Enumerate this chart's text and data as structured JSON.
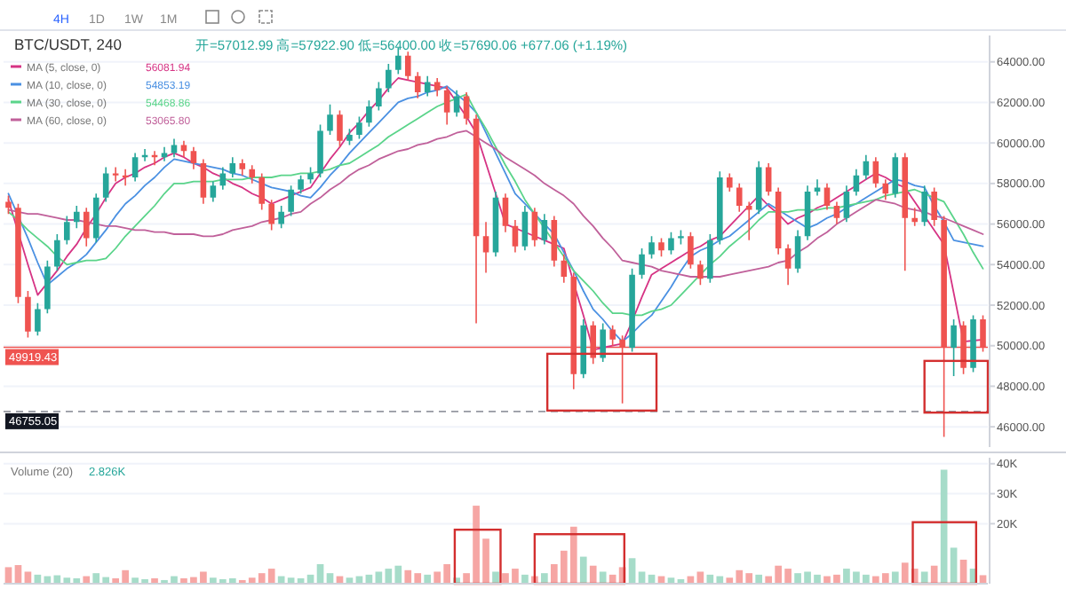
{
  "chart_data": [
    {
      "type": "candlestick",
      "title": "BTC/USDT, 240",
      "annotations": [
        "开=57012.99 高=57922.90 低=56400.00 收=57690.06 +677.06 (+1.19%)",
        "56081.94",
        "54853.19",
        "54468.86",
        "53065.80",
        "4H",
        "1D",
        "1W",
        "1M"
      ],
      "colors": [
        "#ef5350",
        "#ef5350",
        "#ef5350",
        "#26a69a",
        "#26a69a",
        "#26a69a",
        "#26a69a",
        "#26a69a",
        "#ef5350",
        "#26a69a",
        "#26a69a",
        "#ef5350",
        "#ef5350",
        "#26a69a",
        "#26a69a",
        "#ef5350",
        "#26a69a",
        "#26a69a",
        "#ef5350",
        "#ef5350",
        "#ef5350",
        "#26a69a",
        "#26a69a",
        "#26a69a",
        "#ef5350",
        "#ef5350",
        "#ef5350",
        "#ef5350",
        "#26a69a",
        "#26a69a",
        "#26a69a",
        "#26a69a",
        "#26a69a",
        "#26a69a",
        "#ef5350",
        "#26a69a",
        "#26a69a",
        "#26a69a",
        "#26a69a",
        "#26a69a",
        "#26a69a",
        "#ef5350",
        "#ef5350",
        "#26a69a",
        "#ef5350",
        "#ef5350",
        "#26a69a",
        "#ef5350",
        "#ef5350",
        "#ef5350",
        "#26a69a",
        "#ef5350",
        "#ef5350",
        "#26a69a",
        "#ef5350",
        "#26a69a",
        "#ef5350",
        "#ef5350",
        "#ef5350",
        "#26a69a",
        "#ef5350",
        "#26a69a",
        "#ef5350",
        "#ef5350",
        "#26a69a",
        "#26a69a",
        "#26a69a",
        "#ef5350",
        "#26a69a",
        "#26a69a",
        "#ef5350",
        "#ef5350",
        "#26a69a",
        "#26a69a",
        "#ef5350",
        "#ef5350",
        "#ef5350",
        "#26a69a",
        "#ef5350",
        "#ef5350",
        "#ef5350",
        "#26a69a",
        "#26a69a",
        "#26a69a",
        "#ef5350",
        "#ef5350",
        "#26a69a",
        "#26a69a",
        "#26a69a",
        "#ef5350",
        "#ef5350",
        "#26a69a",
        "#ef5350",
        "#ef5350",
        "#26a69a",
        "#ef5350",
        "#ef5350",
        "#26a69a",
        "#ef5350",
        "#26a69a",
        "#ef5350"
      ],
      "categories": [
        null,
        null,
        null,
        null,
        null,
        null,
        null,
        null,
        null,
        null,
        null,
        null,
        null,
        null,
        null,
        null,
        null,
        null,
        null,
        null,
        null,
        null,
        null,
        null,
        null,
        null,
        null,
        null,
        null,
        null,
        null,
        null,
        null,
        null,
        null,
        null,
        null,
        null,
        null,
        null,
        null,
        null,
        null,
        null,
        null,
        null,
        null,
        null,
        null,
        null,
        null,
        null,
        null,
        null,
        null,
        null,
        null,
        null,
        null,
        null,
        null,
        null,
        null,
        null,
        null,
        null,
        null,
        null,
        null,
        null,
        null,
        null,
        null,
        null,
        null,
        null,
        null,
        null,
        null,
        null,
        null,
        null,
        null,
        null,
        null,
        null,
        null,
        null,
        null,
        null,
        null,
        null,
        null,
        null,
        null,
        null,
        null,
        null,
        null,
        null,
        null
      ],
      "ohlc": [
        [
          57100,
          57400,
          56500,
          56800
        ],
        [
          56800,
          57000,
          52100,
          52400
        ],
        [
          52400,
          52700,
          50400,
          50700
        ],
        [
          50700,
          52100,
          50500,
          51800
        ],
        [
          51800,
          54200,
          51600,
          53900
        ],
        [
          53900,
          55500,
          53700,
          55200
        ],
        [
          55200,
          56400,
          55000,
          56100
        ],
        [
          56100,
          56900,
          55800,
          56600
        ],
        [
          56600,
          56800,
          54900,
          55300
        ],
        [
          55300,
          57500,
          55100,
          57300
        ],
        [
          57300,
          58800,
          57100,
          58500
        ],
        [
          58500,
          58800,
          58100,
          58400
        ],
        [
          58400,
          58700,
          57900,
          58300
        ],
        [
          58300,
          59500,
          58100,
          59300
        ],
        [
          59300,
          59700,
          59100,
          59400
        ],
        [
          59400,
          59600,
          58900,
          59300
        ],
        [
          59300,
          59800,
          59100,
          59500
        ],
        [
          59500,
          60200,
          59300,
          59900
        ],
        [
          59900,
          60100,
          59300,
          59600
        ],
        [
          59600,
          59800,
          58700,
          59000
        ],
        [
          59000,
          59200,
          57000,
          57300
        ],
        [
          57300,
          58100,
          57100,
          57900
        ],
        [
          57900,
          58800,
          57700,
          58500
        ],
        [
          58500,
          59300,
          58300,
          59000
        ],
        [
          59000,
          59200,
          58400,
          58700
        ],
        [
          58700,
          58900,
          58000,
          58300
        ],
        [
          58300,
          58500,
          56700,
          57000
        ],
        [
          57000,
          57200,
          55700,
          56000
        ],
        [
          56000,
          56900,
          55800,
          56600
        ],
        [
          56600,
          57900,
          56400,
          57700
        ],
        [
          57700,
          58400,
          57500,
          58200
        ],
        [
          58200,
          58800,
          58000,
          58500
        ],
        [
          58500,
          60900,
          58300,
          60600
        ],
        [
          60600,
          61900,
          60400,
          61400
        ],
        [
          61400,
          61600,
          59800,
          60100
        ],
        [
          60100,
          60700,
          59900,
          60400
        ],
        [
          60400,
          61300,
          60200,
          61000
        ],
        [
          61000,
          62100,
          60800,
          61800
        ],
        [
          61800,
          63000,
          61600,
          62700
        ],
        [
          62700,
          63900,
          62500,
          63600
        ],
        [
          63600,
          64700,
          63400,
          64300
        ],
        [
          64300,
          64500,
          63100,
          63300
        ],
        [
          63300,
          63500,
          62200,
          62500
        ],
        [
          62500,
          63300,
          62300,
          63000
        ],
        [
          63000,
          63200,
          62300,
          62600
        ],
        [
          62600,
          62800,
          60900,
          61500
        ],
        [
          61500,
          62600,
          61300,
          62300
        ],
        [
          62300,
          62500,
          60900,
          61200
        ],
        [
          61200,
          61400,
          51100,
          55400
        ],
        [
          55400,
          56100,
          53600,
          54600
        ],
        [
          54600,
          57600,
          54400,
          57300
        ],
        [
          57300,
          57500,
          55600,
          55900
        ],
        [
          55900,
          56200,
          54600,
          54900
        ],
        [
          54900,
          56900,
          54700,
          56600
        ],
        [
          56600,
          56800,
          54900,
          55200
        ],
        [
          55200,
          56500,
          55000,
          56200
        ],
        [
          56200,
          56400,
          53900,
          54200
        ],
        [
          54200,
          54500,
          53100,
          53400
        ],
        [
          53400,
          53600,
          47850,
          48600
        ],
        [
          48600,
          51300,
          48400,
          51000
        ],
        [
          51000,
          51200,
          49100,
          49400
        ],
        [
          49400,
          51100,
          49200,
          50800
        ],
        [
          50800,
          51000,
          50000,
          50300
        ],
        [
          50300,
          50500,
          47150,
          49900
        ],
        [
          49900,
          53800,
          49700,
          53500
        ],
        [
          53500,
          54800,
          53300,
          54500
        ],
        [
          54500,
          55400,
          54300,
          55100
        ],
        [
          55100,
          55300,
          54400,
          54700
        ],
        [
          54700,
          55600,
          54500,
          55300
        ],
        [
          55300,
          55700,
          55000,
          55400
        ],
        [
          55400,
          55600,
          53800,
          54000
        ],
        [
          54000,
          54200,
          53000,
          53300
        ],
        [
          53300,
          55500,
          53100,
          55200
        ],
        [
          55200,
          58600,
          55000,
          58300
        ],
        [
          58300,
          58500,
          57600,
          57800
        ],
        [
          57800,
          58000,
          56600,
          56900
        ],
        [
          56900,
          57100,
          55200,
          56700
        ],
        [
          56700,
          59100,
          56500,
          58800
        ],
        [
          58800,
          59000,
          57400,
          57600
        ],
        [
          57600,
          57800,
          54500,
          54800
        ],
        [
          54800,
          55000,
          53000,
          53800
        ],
        [
          53800,
          55700,
          53600,
          55400
        ],
        [
          55400,
          57900,
          55200,
          57600
        ],
        [
          57600,
          58200,
          57400,
          57800
        ],
        [
          57800,
          58000,
          56700,
          56900
        ],
        [
          56900,
          57100,
          56000,
          56300
        ],
        [
          56300,
          57900,
          56100,
          57600
        ],
        [
          57600,
          58700,
          57400,
          58400
        ],
        [
          58400,
          59400,
          58200,
          59100
        ],
        [
          59100,
          59300,
          57800,
          58000
        ],
        [
          58000,
          58200,
          57200,
          57500
        ],
        [
          57500,
          59500,
          57300,
          59300
        ],
        [
          59300,
          59500,
          53700,
          56300
        ],
        [
          56300,
          56800,
          55900,
          56100
        ],
        [
          56100,
          57900,
          55900,
          57600
        ],
        [
          57600,
          57800,
          55900,
          56200
        ],
        [
          56200,
          56400,
          45500,
          49900
        ],
        [
          49900,
          51300,
          48500,
          51000
        ],
        [
          51000,
          51200,
          48600,
          48900
        ],
        [
          48900,
          51500,
          48700,
          51300
        ],
        [
          51300,
          51500,
          49700,
          49919.43
        ]
      ],
      "series": [
        {
          "type": "line",
          "name": "MA (5, close, 0)",
          "color": "#d63384",
          "values": [
            57200,
            55600,
            54000,
            52500,
            53100,
            53700,
            54400,
            55000,
            55800,
            56500,
            57300,
            58000,
            58300,
            58500,
            58800,
            59000,
            59300,
            59500,
            59300,
            59000,
            58800,
            58500,
            58300,
            58000,
            57800,
            57500,
            57300,
            57000,
            57200,
            57400,
            57600,
            57800,
            58500,
            59200,
            59800,
            60500,
            61000,
            61600,
            62100,
            62700,
            63200,
            63100,
            63000,
            62900,
            62800,
            62700,
            62000,
            61300,
            60500,
            59000,
            57500,
            56000,
            55800,
            55600,
            55400,
            55200,
            55000,
            54800,
            53100,
            51500,
            49800,
            49900,
            50000,
            50100,
            51200,
            52400,
            53500,
            53800,
            54100,
            54400,
            54700,
            54900,
            55200,
            55400,
            55900,
            56400,
            56900,
            57400,
            56900,
            56500,
            56000,
            56300,
            56500,
            56800,
            57000,
            57300,
            57600,
            57900,
            58200,
            58500,
            58300,
            58000,
            57800,
            57100,
            56400,
            55700,
            55000,
            52600,
            50200,
            50250,
            50300
          ]
        },
        {
          "type": "line",
          "name": "MA (10, close, 0)",
          "color": "#4a90e2",
          "values": [
            57500,
            56400,
            55300,
            54100,
            53000,
            53400,
            53800,
            54100,
            54500,
            55100,
            55700,
            56400,
            57000,
            57400,
            57900,
            58300,
            58800,
            59200,
            59100,
            59000,
            58900,
            58800,
            58700,
            58500,
            58400,
            58200,
            58000,
            57800,
            57700,
            57600,
            57400,
            57300,
            57800,
            58400,
            58900,
            59500,
            60000,
            60500,
            61000,
            61500,
            62000,
            62200,
            62300,
            62500,
            62600,
            62800,
            62400,
            62000,
            61500,
            60500,
            59500,
            58500,
            57500,
            57000,
            56500,
            56000,
            55500,
            54600,
            53700,
            52700,
            51800,
            51300,
            50700,
            50200,
            50600,
            51100,
            51500,
            52200,
            52900,
            53700,
            54400,
            54700,
            54900,
            55200,
            55400,
            55800,
            56200,
            56600,
            57000,
            56700,
            56400,
            56100,
            55800,
            56000,
            56300,
            56500,
            56800,
            57000,
            57300,
            57600,
            57900,
            58200,
            58100,
            57900,
            57800,
            56900,
            56100,
            55200,
            55100,
            55000,
            54900
          ]
        },
        {
          "type": "line",
          "name": "MA (30, close, 0)",
          "color": "#5ad48a",
          "values": [
            56600,
            56200,
            55700,
            55300,
            54900,
            54400,
            54000,
            54100,
            54200,
            54200,
            54300,
            54800,
            55400,
            55900,
            56400,
            56900,
            57500,
            58000,
            58000,
            58100,
            58100,
            58100,
            58200,
            58200,
            58200,
            58300,
            58300,
            58300,
            58400,
            58400,
            58500,
            58500,
            58600,
            58700,
            58900,
            59000,
            59300,
            59600,
            59900,
            60300,
            60600,
            60900,
            61200,
            61500,
            61800,
            62000,
            62200,
            62400,
            61500,
            60700,
            59800,
            58900,
            58100,
            57200,
            56500,
            55800,
            55100,
            54400,
            53700,
            53200,
            52700,
            52100,
            51600,
            51600,
            51500,
            51500,
            51700,
            51800,
            52000,
            52500,
            53000,
            53500,
            54000,
            54400,
            54900,
            55300,
            55700,
            56200,
            56600,
            56600,
            56600,
            56700,
            56700,
            56700,
            56800,
            56800,
            56900,
            57000,
            57100,
            57200,
            57400,
            57500,
            57600,
            57700,
            57500,
            57300,
            57100,
            56300,
            55500,
            54600,
            53800
          ]
        },
        {
          "type": "line",
          "name": "MA (60, close, 0)",
          "color": "#c0609a",
          "values": [
            56700,
            56600,
            56500,
            56500,
            56400,
            56300,
            56200,
            56200,
            56100,
            56000,
            55900,
            55900,
            55800,
            55700,
            55700,
            55600,
            55600,
            55500,
            55500,
            55500,
            55400,
            55400,
            55500,
            55700,
            55800,
            55900,
            56100,
            56200,
            56300,
            56500,
            56600,
            57000,
            57300,
            57700,
            58000,
            58400,
            58700,
            58900,
            59200,
            59400,
            59600,
            59700,
            59900,
            60000,
            60200,
            60300,
            60500,
            60600,
            60300,
            60000,
            59700,
            59300,
            59000,
            58700,
            58400,
            58000,
            57700,
            57400,
            57000,
            56400,
            55900,
            55300,
            54800,
            54200,
            54100,
            54000,
            53900,
            53700,
            53600,
            53500,
            53400,
            53400,
            53400,
            53400,
            53500,
            53600,
            53700,
            53800,
            53900,
            54100,
            54200,
            54600,
            54900,
            55300,
            55600,
            56000,
            56300,
            56600,
            56900,
            57200,
            57100,
            57000,
            56800,
            56700,
            56600,
            56400,
            56300,
            56100,
            55900,
            55700,
            55500
          ]
        }
      ],
      "ylim": [
        45000,
        65300
      ],
      "yticks": [
        {
          "value": 46000,
          "label": "46000.00"
        },
        {
          "value": 48000,
          "label": "48000.00"
        },
        {
          "value": 50000,
          "label": "50000.00"
        },
        {
          "value": 52000,
          "label": "52000.00"
        },
        {
          "value": 54000,
          "label": "54000.00"
        },
        {
          "value": 56000,
          "label": "56000.00"
        },
        {
          "value": 58000,
          "label": "58000.00"
        },
        {
          "value": 60000,
          "label": "60000.00"
        },
        {
          "value": 62000,
          "label": "62000.00"
        },
        {
          "value": 64000,
          "label": "64000.00"
        }
      ],
      "ref_lines": [
        {
          "axis": "y",
          "value": 49919.43,
          "label": "49919.43",
          "color": "#ef5350",
          "line_style": "solid"
        },
        {
          "axis": "y",
          "value": 46755.05,
          "label": "46755.05",
          "color": "#9598a1",
          "line_style": "dashed"
        }
      ],
      "grid": true,
      "legend": "top left",
      "tick_labels": "y"
    },
    {
      "type": "bar",
      "title": "Volume (20)",
      "annotations": [
        "2.826K"
      ],
      "categories": [
        null,
        null,
        null,
        null,
        null,
        null,
        null,
        null,
        null,
        null,
        null,
        null,
        null,
        null,
        null,
        null,
        null,
        null,
        null,
        null,
        null,
        null,
        null,
        null,
        null,
        null,
        null,
        null,
        null,
        null,
        null,
        null,
        null,
        null,
        null,
        null,
        null,
        null,
        null,
        null,
        null,
        null,
        null,
        null,
        null,
        null,
        null,
        null,
        null,
        null,
        null,
        null,
        null,
        null,
        null,
        null,
        null,
        null,
        null,
        null,
        null,
        null,
        null,
        null,
        null,
        null,
        null,
        null,
        null,
        null,
        null,
        null,
        null,
        null,
        null,
        null,
        null,
        null,
        null,
        null,
        null,
        null,
        null,
        null,
        null,
        null,
        null,
        null,
        null,
        null,
        null,
        null,
        null,
        null,
        null,
        null,
        null,
        null,
        null,
        null,
        null
      ],
      "values": [
        5500,
        6200,
        4000,
        3000,
        2500,
        2800,
        2000,
        1800,
        2500,
        3500,
        2200,
        1800,
        4500,
        2000,
        1500,
        1800,
        1200,
        2500,
        1800,
        2200,
        4000,
        2000,
        1500,
        1800,
        1200,
        2000,
        3500,
        5000,
        2500,
        2000,
        1800,
        3000,
        6500,
        3500,
        2500,
        2000,
        2500,
        3000,
        4000,
        5000,
        6000,
        4500,
        3500,
        3000,
        4000,
        6500,
        2000,
        3500,
        26000,
        15000,
        4000,
        3500,
        5000,
        3000,
        2500,
        3500,
        6500,
        11000,
        19000,
        9000,
        6000,
        4000,
        3000,
        5500,
        8500,
        4000,
        3000,
        2500,
        2000,
        1500,
        2500,
        4000,
        3000,
        2500,
        2000,
        4500,
        3500,
        3000,
        2500,
        6000,
        5000,
        3500,
        4000,
        3000,
        2500,
        3000,
        5000,
        4000,
        3000,
        2500,
        3500,
        4000,
        7000,
        5000,
        4000,
        6000,
        38000,
        12000,
        8000,
        5000,
        2826
      ],
      "colors": [
        "#f6a6a4",
        "#f6a6a4",
        "#f6a6a4",
        "#a6dcc9",
        "#a6dcc9",
        "#a6dcc9",
        "#a6dcc9",
        "#a6dcc9",
        "#f6a6a4",
        "#a6dcc9",
        "#a6dcc9",
        "#f6a6a4",
        "#f6a6a4",
        "#a6dcc9",
        "#a6dcc9",
        "#f6a6a4",
        "#a6dcc9",
        "#a6dcc9",
        "#f6a6a4",
        "#f6a6a4",
        "#f6a6a4",
        "#a6dcc9",
        "#a6dcc9",
        "#a6dcc9",
        "#f6a6a4",
        "#f6a6a4",
        "#f6a6a4",
        "#f6a6a4",
        "#a6dcc9",
        "#a6dcc9",
        "#a6dcc9",
        "#a6dcc9",
        "#a6dcc9",
        "#a6dcc9",
        "#f6a6a4",
        "#a6dcc9",
        "#a6dcc9",
        "#a6dcc9",
        "#a6dcc9",
        "#a6dcc9",
        "#a6dcc9",
        "#f6a6a4",
        "#f6a6a4",
        "#a6dcc9",
        "#f6a6a4",
        "#f6a6a4",
        "#a6dcc9",
        "#f6a6a4",
        "#f6a6a4",
        "#f6a6a4",
        "#a6dcc9",
        "#f6a6a4",
        "#f6a6a4",
        "#a6dcc9",
        "#f6a6a4",
        "#a6dcc9",
        "#f6a6a4",
        "#f6a6a4",
        "#f6a6a4",
        "#a6dcc9",
        "#f6a6a4",
        "#a6dcc9",
        "#f6a6a4",
        "#f6a6a4",
        "#a6dcc9",
        "#a6dcc9",
        "#a6dcc9",
        "#f6a6a4",
        "#a6dcc9",
        "#a6dcc9",
        "#f6a6a4",
        "#f6a6a4",
        "#a6dcc9",
        "#a6dcc9",
        "#f6a6a4",
        "#f6a6a4",
        "#f6a6a4",
        "#a6dcc9",
        "#f6a6a4",
        "#f6a6a4",
        "#f6a6a4",
        "#a6dcc9",
        "#a6dcc9",
        "#a6dcc9",
        "#f6a6a4",
        "#f6a6a4",
        "#a6dcc9",
        "#a6dcc9",
        "#a6dcc9",
        "#f6a6a4",
        "#f6a6a4",
        "#a6dcc9",
        "#f6a6a4",
        "#f6a6a4",
        "#a6dcc9",
        "#f6a6a4",
        "#a6dcc9",
        "#a6dcc9",
        "#f6a6a4",
        "#a6dcc9",
        "#f6a6a4"
      ],
      "ylim": [
        0,
        42000
      ],
      "yticks": [
        {
          "value": 20000,
          "label": "20K"
        },
        {
          "value": 30000,
          "label": "30K"
        },
        {
          "value": 40000,
          "label": "40K"
        }
      ],
      "grid": true,
      "tick_labels": "y"
    }
  ]
}
